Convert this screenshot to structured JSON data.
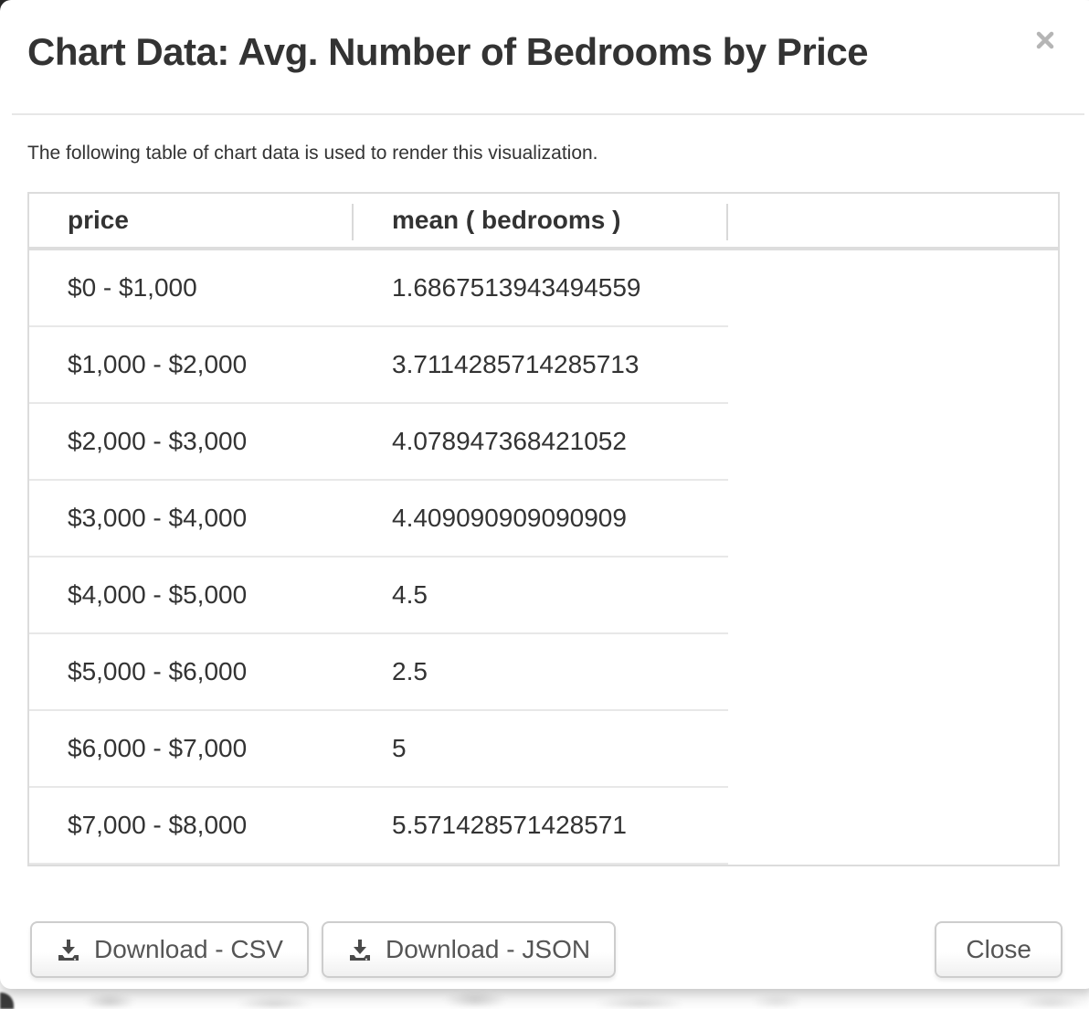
{
  "modal": {
    "title": "Chart Data: Avg. Number of Bedrooms by Price",
    "description": "The following table of chart data is used to render this visualization.",
    "table": {
      "columns": [
        "price",
        "mean ( bedrooms )"
      ],
      "rows": [
        [
          "$0 - $1,000",
          "1.6867513943494559"
        ],
        [
          "$1,000 - $2,000",
          "3.7114285714285713"
        ],
        [
          "$2,000 - $3,000",
          "4.078947368421052"
        ],
        [
          "$3,000 - $4,000",
          "4.409090909090909"
        ],
        [
          "$4,000 - $5,000",
          "4.5"
        ],
        [
          "$5,000 - $6,000",
          "2.5"
        ],
        [
          "$6,000 - $7,000",
          "5"
        ],
        [
          "$7,000 - $8,000",
          "5.571428571428571"
        ]
      ]
    },
    "buttons": {
      "download_csv": "Download - CSV",
      "download_json": "Download - JSON",
      "close": "Close"
    },
    "icons": {
      "close": "x-icon",
      "download": "download-icon"
    },
    "colors": {
      "text": "#333333",
      "button_text": "#555555",
      "table_border": "#dddddd",
      "close_icon": "#b5b5b5",
      "download_icon": "#4a4a4a"
    }
  }
}
